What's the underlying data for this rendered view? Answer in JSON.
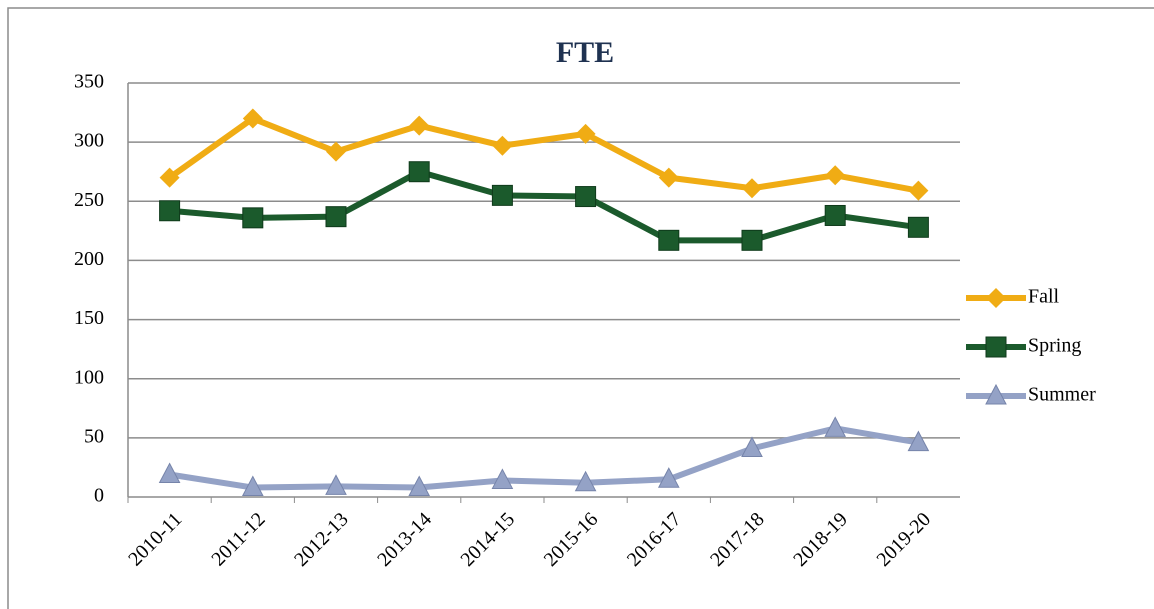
{
  "chart_data": {
    "type": "line",
    "title": "FTE",
    "categories": [
      "2010-11",
      "2011-12",
      "2012-13",
      "2013-14",
      "2014-15",
      "2015-16",
      "2016-17",
      "2017-18",
      "2018-19",
      "2019-20"
    ],
    "series": [
      {
        "name": "Fall",
        "color": "#f0ac14",
        "marker": "diamond",
        "values": [
          270,
          320,
          292,
          314,
          297,
          307,
          270,
          261,
          272,
          259
        ]
      },
      {
        "name": "Spring",
        "color": "#1b5a2c",
        "marker": "square",
        "values": [
          242,
          236,
          237,
          275,
          255,
          254,
          217,
          217,
          238,
          228
        ]
      },
      {
        "name": "Summer",
        "color": "#94a2c6",
        "marker": "triangle",
        "values": [
          19,
          8,
          9,
          8,
          14,
          12,
          15,
          41,
          58,
          46
        ]
      }
    ],
    "ylim": [
      0,
      350
    ],
    "yticks": [
      0,
      50,
      100,
      150,
      200,
      250,
      300,
      350
    ],
    "grid": true,
    "legend": "right"
  }
}
